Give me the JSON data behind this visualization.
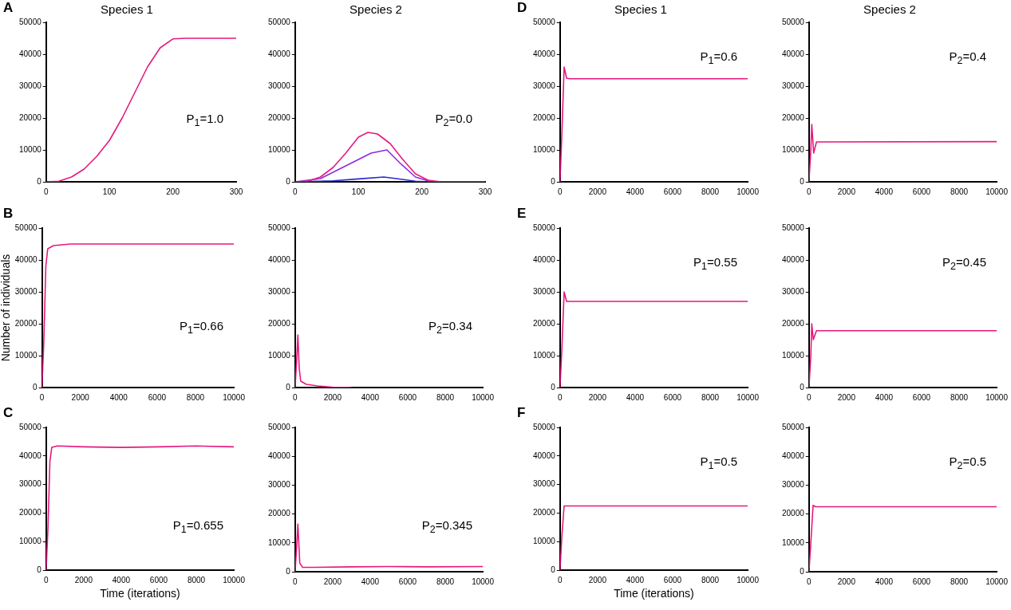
{
  "chart_data": [
    {
      "type": "line",
      "title": "Species 1",
      "annotations": [
        "A",
        "P$_{1}$=1.0"
      ],
      "xlim": [
        0,
        300
      ],
      "xticks": [
        0,
        100,
        200,
        300
      ],
      "ylim": [
        0,
        50000
      ],
      "yticks": [
        0,
        10000,
        20000,
        30000,
        40000,
        50000
      ],
      "grid": false,
      "legend": false,
      "marker": "none",
      "series": [
        {
          "color": "#e6197e",
          "x": [
            0,
            20,
            40,
            60,
            80,
            100,
            120,
            140,
            160,
            180,
            200,
            220,
            300
          ],
          "values": [
            0,
            200,
            1500,
            4000,
            8000,
            13000,
            20000,
            28000,
            36000,
            42000,
            44800,
            45000,
            45000
          ]
        }
      ]
    },
    {
      "type": "line",
      "title": "Species 2",
      "annotations": [
        "P$_{2}$=0.0"
      ],
      "xlim": [
        0,
        300
      ],
      "xticks": [
        0,
        100,
        200,
        300
      ],
      "ylim": [
        0,
        50000
      ],
      "yticks": [
        0,
        10000,
        20000,
        30000,
        40000,
        50000
      ],
      "grid": false,
      "legend": false,
      "marker": "none",
      "series": [
        {
          "color": "#e6197e",
          "x": [
            0,
            20,
            40,
            60,
            80,
            100,
            115,
            130,
            150,
            170,
            190,
            210,
            230,
            300
          ],
          "values": [
            0,
            200,
            1500,
            4500,
            9000,
            14000,
            15500,
            15000,
            12000,
            7000,
            2500,
            500,
            0,
            0
          ]
        },
        {
          "color": "#8b2be2",
          "x": [
            0,
            40,
            80,
            120,
            145,
            165,
            190,
            215,
            300
          ],
          "values": [
            0,
            1000,
            5000,
            9000,
            10000,
            6000,
            1500,
            0,
            0
          ]
        },
        {
          "color": "#2b2bd0",
          "x": [
            0,
            60,
            100,
            140,
            160,
            190,
            210,
            300
          ],
          "values": [
            0,
            300,
            900,
            1500,
            1000,
            200,
            0,
            0
          ]
        }
      ]
    },
    {
      "type": "line",
      "title": "Species 1",
      "annotations": [
        "D",
        "P$_{1}$=0.6"
      ],
      "xlim": [
        0,
        10000
      ],
      "xticks": [
        0,
        2000,
        4000,
        6000,
        8000,
        10000
      ],
      "ylim": [
        0,
        50000
      ],
      "yticks": [
        0,
        10000,
        20000,
        30000,
        40000,
        50000
      ],
      "grid": false,
      "legend": false,
      "marker": "none",
      "series": [
        {
          "color": "#e6197e",
          "x": [
            0,
            100,
            220,
            350,
            500,
            10000
          ],
          "values": [
            0,
            15000,
            36000,
            32500,
            32300,
            32300
          ]
        }
      ]
    },
    {
      "type": "line",
      "title": "Species 2",
      "annotations": [
        "P$_{2}$=0.4"
      ],
      "xlim": [
        0,
        10000
      ],
      "xticks": [
        0,
        2000,
        4000,
        6000,
        8000,
        10000
      ],
      "ylim": [
        0,
        50000
      ],
      "yticks": [
        0,
        10000,
        20000,
        30000,
        40000,
        50000
      ],
      "grid": false,
      "legend": false,
      "marker": "none",
      "series": [
        {
          "color": "#e6197e",
          "x": [
            0,
            100,
            150,
            250,
            400,
            10000
          ],
          "values": [
            0,
            10000,
            18000,
            9000,
            12500,
            12600
          ]
        }
      ]
    },
    {
      "type": "line",
      "ylabel": "Number of individuals",
      "annotations": [
        "B",
        "P$_{1}$=0.66"
      ],
      "xlim": [
        0,
        10000
      ],
      "xticks": [
        0,
        2000,
        4000,
        6000,
        8000,
        10000
      ],
      "ylim": [
        0,
        50000
      ],
      "yticks": [
        0,
        10000,
        20000,
        30000,
        40000,
        50000
      ],
      "grid": false,
      "legend": false,
      "marker": "none",
      "series": [
        {
          "color": "#e6197e",
          "x": [
            0,
            100,
            200,
            300,
            600,
            1500,
            10000
          ],
          "values": [
            0,
            15000,
            38000,
            43500,
            44500,
            45000,
            45000
          ]
        }
      ]
    },
    {
      "type": "line",
      "annotations": [
        "P$_{2}$=0.34"
      ],
      "xlim": [
        0,
        10000
      ],
      "xticks": [
        0,
        2000,
        4000,
        6000,
        8000,
        10000
      ],
      "ylim": [
        0,
        50000
      ],
      "yticks": [
        0,
        10000,
        20000,
        30000,
        40000,
        50000
      ],
      "grid": false,
      "legend": false,
      "marker": "none",
      "series": [
        {
          "color": "#e6197e",
          "x": [
            0,
            80,
            150,
            220,
            300,
            600,
            1200,
            2000,
            3000
          ],
          "values": [
            0,
            8000,
            16500,
            6000,
            2000,
            1000,
            500,
            100,
            0
          ]
        }
      ]
    },
    {
      "type": "line",
      "annotations": [
        "E",
        "P$_{1}$=0.55"
      ],
      "xlim": [
        0,
        10000
      ],
      "xticks": [
        0,
        2000,
        4000,
        6000,
        8000,
        10000
      ],
      "ylim": [
        0,
        50000
      ],
      "yticks": [
        0,
        10000,
        20000,
        30000,
        40000,
        50000
      ],
      "grid": false,
      "legend": false,
      "marker": "none",
      "series": [
        {
          "color": "#e6197e",
          "x": [
            0,
            100,
            220,
            350,
            10000
          ],
          "values": [
            0,
            12000,
            30000,
            27000,
            27000
          ]
        }
      ]
    },
    {
      "type": "line",
      "annotations": [
        "P$_{2}$=0.45"
      ],
      "xlim": [
        0,
        10000
      ],
      "xticks": [
        0,
        2000,
        4000,
        6000,
        8000,
        10000
      ],
      "ylim": [
        0,
        50000
      ],
      "yticks": [
        0,
        10000,
        20000,
        30000,
        40000,
        50000
      ],
      "grid": false,
      "legend": false,
      "marker": "none",
      "series": [
        {
          "color": "#e6197e",
          "x": [
            0,
            100,
            150,
            230,
            400,
            10000
          ],
          "values": [
            0,
            10000,
            20000,
            15000,
            17800,
            17800
          ]
        }
      ]
    },
    {
      "type": "line",
      "xlabel": "Time (iterations)",
      "annotations": [
        "C",
        "P$_{1}$=0.655"
      ],
      "xlim": [
        0,
        10000
      ],
      "xticks": [
        0,
        2000,
        4000,
        6000,
        8000,
        10000
      ],
      "ylim": [
        0,
        50000
      ],
      "yticks": [
        0,
        10000,
        20000,
        30000,
        40000,
        50000
      ],
      "grid": false,
      "legend": false,
      "marker": "none",
      "series": [
        {
          "color": "#e6197e",
          "x": [
            0,
            100,
            200,
            300,
            600,
            2000,
            4000,
            6000,
            8000,
            10000
          ],
          "values": [
            0,
            15000,
            38000,
            43000,
            43500,
            43200,
            43000,
            43200,
            43500,
            43200
          ]
        }
      ]
    },
    {
      "type": "line",
      "annotations": [
        "P$_{2}$=0.345"
      ],
      "xlim": [
        0,
        10000
      ],
      "xticks": [
        0,
        2000,
        4000,
        6000,
        8000,
        10000
      ],
      "ylim": [
        0,
        50000
      ],
      "yticks": [
        0,
        10000,
        20000,
        30000,
        40000,
        50000
      ],
      "grid": false,
      "legend": false,
      "marker": "none",
      "series": [
        {
          "color": "#e6197e",
          "x": [
            0,
            80,
            150,
            250,
            400,
            1000,
            3000,
            5000,
            7000,
            10000
          ],
          "values": [
            0,
            8000,
            16500,
            3000,
            1500,
            1500,
            1700,
            1800,
            1700,
            1800
          ]
        }
      ]
    },
    {
      "type": "line",
      "xlabel": "Time (iterations)",
      "annotations": [
        "F",
        "P$_{1}$=0.5"
      ],
      "xlim": [
        0,
        10000
      ],
      "xticks": [
        0,
        2000,
        4000,
        6000,
        8000,
        10000
      ],
      "ylim": [
        0,
        50000
      ],
      "yticks": [
        0,
        10000,
        20000,
        30000,
        40000,
        50000
      ],
      "grid": false,
      "legend": false,
      "marker": "none",
      "series": [
        {
          "color": "#e6197e",
          "x": [
            0,
            100,
            220,
            10000
          ],
          "values": [
            0,
            12000,
            22500,
            22500
          ]
        }
      ]
    },
    {
      "type": "line",
      "annotations": [
        "P$_{2}$=0.5"
      ],
      "xlim": [
        0,
        10000
      ],
      "xticks": [
        0,
        2000,
        4000,
        6000,
        8000,
        10000
      ],
      "ylim": [
        0,
        50000
      ],
      "yticks": [
        0,
        10000,
        20000,
        30000,
        40000,
        50000
      ],
      "grid": false,
      "legend": false,
      "marker": "none",
      "series": [
        {
          "color": "#e6197e",
          "x": [
            0,
            100,
            220,
            350,
            10000
          ],
          "values": [
            0,
            10000,
            23000,
            22500,
            22500
          ]
        }
      ]
    }
  ]
}
